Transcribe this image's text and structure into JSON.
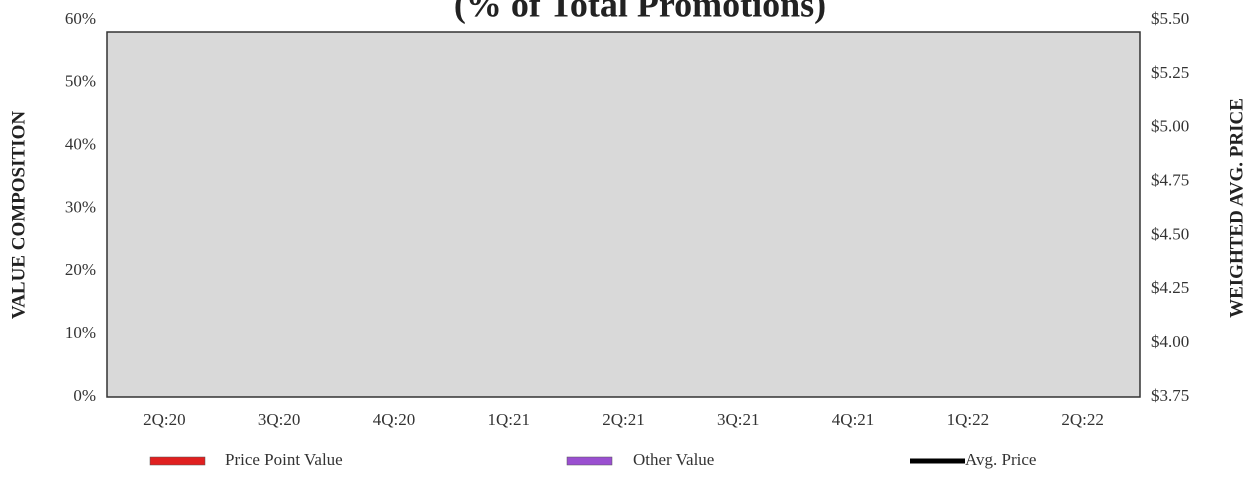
{
  "chart_data": {
    "type": "bar",
    "title": "(% of Total Promotions)",
    "ylabel": "VALUE COMPOSITION",
    "y2label": "WEIGHTED AVG. PRICE",
    "categories": [
      "2Q:20",
      "3Q:20",
      "4Q:20",
      "1Q:21",
      "2Q:21",
      "3Q:21",
      "4Q:21",
      "1Q:22",
      "2Q:22"
    ],
    "series": [
      {
        "name": "Price Point Value",
        "color": "#e02020",
        "values": [
          null,
          null,
          null,
          null,
          null,
          null,
          null,
          null,
          null
        ]
      },
      {
        "name": "Other Value",
        "color": "#9a4fd0",
        "values": [
          null,
          null,
          null,
          null,
          null,
          null,
          null,
          null,
          null
        ]
      },
      {
        "name": "Avg. Price",
        "color": "#000000",
        "axis": "y2",
        "values": [
          null,
          null,
          null,
          null,
          null,
          null,
          null,
          null,
          null
        ]
      }
    ],
    "ylim": [
      0,
      60
    ],
    "yticks": [
      {
        "value": 0,
        "label": "0%"
      },
      {
        "value": 10,
        "label": "10%"
      },
      {
        "value": 20,
        "label": "20%"
      },
      {
        "value": 30,
        "label": "30%"
      },
      {
        "value": 40,
        "label": "40%"
      },
      {
        "value": 50,
        "label": "50%"
      },
      {
        "value": 60,
        "label": "60%"
      }
    ],
    "y2lim": [
      3.75,
      5.5
    ],
    "y2ticks": [
      {
        "value": 3.75,
        "label": "$3.75"
      },
      {
        "value": 4,
        "label": "$4.00"
      },
      {
        "value": 4.25,
        "label": "$4.25"
      },
      {
        "value": 4.5,
        "label": "$4.50"
      },
      {
        "value": 4.75,
        "label": "$4.75"
      },
      {
        "value": 5,
        "label": "$5.00"
      },
      {
        "value": 5.25,
        "label": "$5.25"
      },
      {
        "value": 5.5,
        "label": "$5.50"
      }
    ],
    "grid": false
  }
}
